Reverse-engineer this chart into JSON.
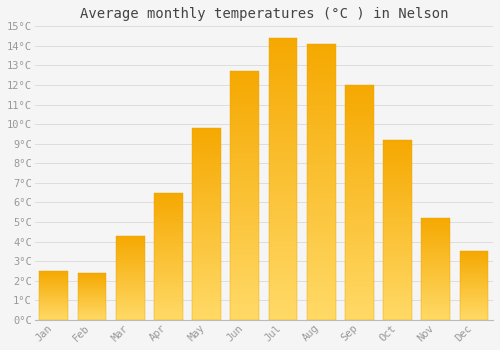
{
  "title": "Average monthly temperatures (°C ) in Nelson",
  "months": [
    "Jan",
    "Feb",
    "Mar",
    "Apr",
    "May",
    "Jun",
    "Jul",
    "Aug",
    "Sep",
    "Oct",
    "Nov",
    "Dec"
  ],
  "temperatures": [
    2.5,
    2.4,
    4.3,
    6.5,
    9.8,
    12.7,
    14.4,
    14.1,
    12.0,
    9.2,
    5.2,
    3.5
  ],
  "bar_color_top": "#F5A800",
  "bar_color_bottom": "#FFD966",
  "background_color": "#F5F5F5",
  "grid_color": "#DDDDDD",
  "tick_label_color": "#999999",
  "ylim": [
    0,
    15
  ],
  "yticks": [
    0,
    1,
    2,
    3,
    4,
    5,
    6,
    7,
    8,
    9,
    10,
    11,
    12,
    13,
    14,
    15
  ],
  "title_fontsize": 10,
  "tick_fontsize": 7.5,
  "bar_width": 0.75
}
